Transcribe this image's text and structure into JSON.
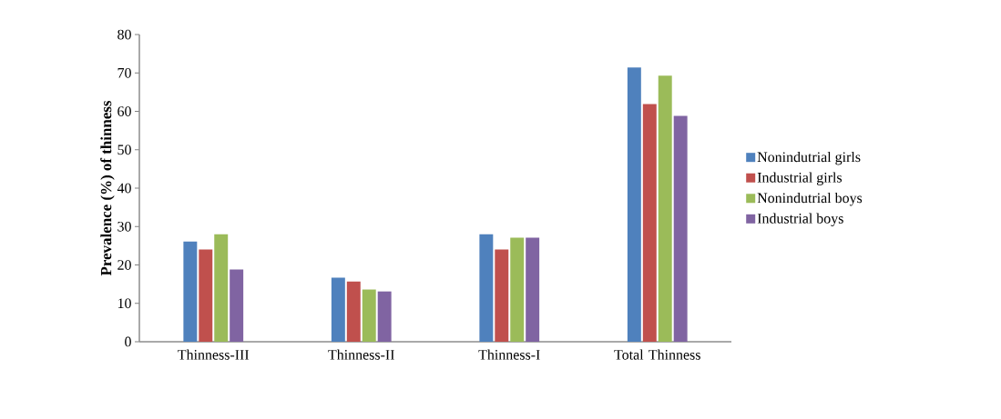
{
  "chart_data": {
    "type": "bar",
    "ylabel": "Prevalence (%) of thinness",
    "categories": [
      "Thinness-III",
      "Thinness-II",
      "Thinness-I",
      "Total Thinness"
    ],
    "series": [
      {
        "name": "Nonindutrial girls",
        "color": "#4f81bd",
        "values": [
          26.1,
          16.7,
          28.0,
          71.4
        ]
      },
      {
        "name": "Industrial girls",
        "color": "#c0504d",
        "values": [
          24.0,
          15.7,
          24.0,
          61.9
        ]
      },
      {
        "name": "Nonindutrial boys",
        "color": "#9bbb59",
        "values": [
          28.0,
          13.6,
          27.1,
          69.3
        ]
      },
      {
        "name": "Industrial boys",
        "color": "#8064a2",
        "values": [
          18.8,
          13.1,
          27.1,
          58.8
        ]
      }
    ],
    "ylim": [
      0,
      80
    ],
    "yticks": [
      0,
      10,
      20,
      30,
      40,
      50,
      60,
      70,
      80
    ],
    "grid": false,
    "legend": "right"
  }
}
